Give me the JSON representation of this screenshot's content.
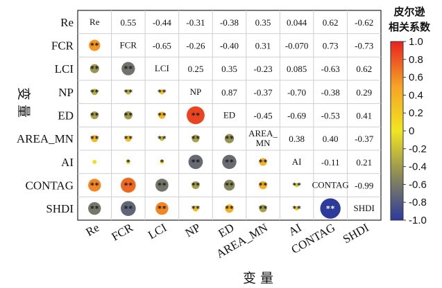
{
  "chart_data": {
    "type": "heatmap",
    "subtype": "correlation-matrix",
    "variables": [
      "Re",
      "FCR",
      "LCI",
      "NP",
      "ED",
      "AREA_MN",
      "AI",
      "CONTAG",
      "SHDI"
    ],
    "diagonal_labels": [
      "Re",
      "FCR",
      "LCI",
      "NP",
      "ED",
      "AREA_\nMN",
      "AI",
      "CONTAG",
      "SHDI"
    ],
    "matrix": [
      [
        1,
        0.55,
        -0.44,
        -0.31,
        -0.38,
        0.35,
        0.044,
        0.62,
        -0.62
      ],
      [
        0.55,
        1,
        -0.65,
        -0.26,
        -0.4,
        0.31,
        -0.07,
        0.73,
        -0.73
      ],
      [
        -0.44,
        -0.65,
        1,
        0.25,
        0.35,
        -0.23,
        0.085,
        -0.63,
        0.62
      ],
      [
        -0.31,
        -0.26,
        0.25,
        1,
        0.87,
        -0.37,
        -0.7,
        -0.38,
        0.29
      ],
      [
        -0.38,
        -0.4,
        0.35,
        0.87,
        1,
        -0.45,
        -0.69,
        -0.53,
        0.41
      ],
      [
        0.35,
        0.31,
        -0.23,
        -0.37,
        -0.45,
        1,
        0.38,
        0.4,
        -0.37
      ],
      [
        0.044,
        -0.07,
        0.085,
        -0.7,
        -0.69,
        0.38,
        1,
        -0.11,
        0.21
      ],
      [
        0.62,
        0.73,
        -0.63,
        -0.38,
        -0.53,
        0.4,
        -0.11,
        1,
        -0.99
      ],
      [
        -0.62,
        -0.73,
        0.62,
        0.29,
        0.41,
        -0.37,
        0.21,
        -0.99,
        1
      ]
    ],
    "upper_labels": [
      [
        "",
        "0.55",
        "-0.44",
        "-0.31",
        "-0.38",
        "0.35",
        "0.044",
        "0.62",
        "-0.62"
      ],
      [
        "",
        "",
        "-0.65",
        "-0.26",
        "-0.40",
        "0.31",
        "-0.070",
        "0.73",
        "-0.73"
      ],
      [
        "",
        "",
        "",
        "0.25",
        "0.35",
        "-0.23",
        "0.085",
        "-0.63",
        "0.62"
      ],
      [
        "",
        "",
        "",
        "",
        "0.87",
        "-0.37",
        "-0.70",
        "-0.38",
        "0.29"
      ],
      [
        "",
        "",
        "",
        "",
        "",
        "-0.45",
        "-0.69",
        "-0.53",
        "0.41"
      ],
      [
        "",
        "",
        "",
        "",
        "",
        "",
        "0.38",
        "0.40",
        "-0.37"
      ],
      [
        "",
        "",
        "",
        "",
        "",
        "",
        "",
        "-0.11",
        "0.21"
      ],
      [
        "",
        "",
        "",
        "",
        "",
        "",
        "",
        "",
        "-0.99"
      ],
      [
        "",
        "",
        "",
        "",
        "",
        "",
        "",
        "",
        ""
      ]
    ],
    "significance": [
      [
        "",
        "",
        "",
        "",
        "",
        "",
        "",
        "",
        ""
      ],
      [
        "**",
        "",
        "",
        "",
        "",
        "",
        "",
        "",
        ""
      ],
      [
        "**",
        "**",
        "",
        "",
        "",
        "",
        "",
        "",
        ""
      ],
      [
        "**",
        "**",
        "**",
        "",
        "",
        "",
        "",
        "",
        ""
      ],
      [
        "**",
        "**",
        "**",
        "**",
        "",
        "",
        "",
        "",
        ""
      ],
      [
        "**",
        "**",
        "**",
        "**",
        "**",
        "",
        "",
        "",
        ""
      ],
      [
        "",
        "*",
        "*",
        "**",
        "**",
        "**",
        "",
        "",
        ""
      ],
      [
        "**",
        "**",
        "**",
        "**",
        "**",
        "**",
        "**",
        "",
        ""
      ],
      [
        "**",
        "**",
        "**",
        "**",
        "**",
        "**",
        "**",
        "**",
        ""
      ]
    ],
    "xlabel": "变 量",
    "ylabel": "变 量",
    "colorbar": {
      "title_line1": "皮尔逊",
      "title_line2": "相关系数",
      "ticks": [
        "1.0",
        "0.8",
        "0.6",
        "0.4",
        "0.2",
        "0",
        "-0.2",
        "-0.4",
        "-0.6",
        "-0.8",
        "-1.0"
      ],
      "range": [
        -1.0,
        1.0
      ],
      "colors": [
        "#e8221f",
        "#f5a425",
        "#f1e521",
        "#8d8a58",
        "#2b3a9c"
      ]
    },
    "grid": true
  }
}
